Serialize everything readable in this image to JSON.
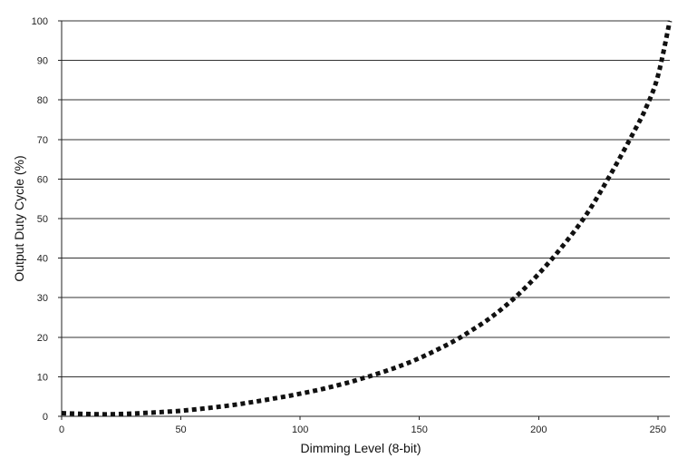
{
  "chart_data": {
    "type": "line",
    "title": "",
    "xlabel": "Dimming Level (8-bit)",
    "ylabel": "Output Duty Cycle (%)",
    "xlim": [
      0,
      255
    ],
    "ylim": [
      0,
      100
    ],
    "x_ticks": [
      0,
      50,
      100,
      150,
      200,
      250
    ],
    "y_ticks": [
      0,
      10,
      20,
      30,
      40,
      50,
      60,
      70,
      80,
      90,
      100
    ],
    "grid": "horizontal",
    "legend": "none",
    "series": [
      {
        "style": "dotted",
        "color": "#111111",
        "x": [
          0,
          10,
          20,
          30,
          40,
          50,
          60,
          70,
          80,
          90,
          100,
          110,
          120,
          125,
          130,
          140,
          150,
          160,
          165,
          170,
          180,
          190,
          200,
          210,
          220,
          230,
          240,
          245,
          250,
          255
        ],
        "y": [
          0.8,
          0.6,
          0.5,
          0.7,
          1.0,
          1.4,
          2.0,
          2.7,
          3.6,
          4.6,
          5.7,
          7.0,
          8.5,
          9.4,
          10.3,
          12.3,
          14.7,
          17.6,
          19.2,
          21.0,
          25.0,
          30.0,
          36.0,
          43.0,
          51.0,
          61.0,
          72.0,
          78.0,
          86.0,
          100.0
        ]
      }
    ]
  }
}
